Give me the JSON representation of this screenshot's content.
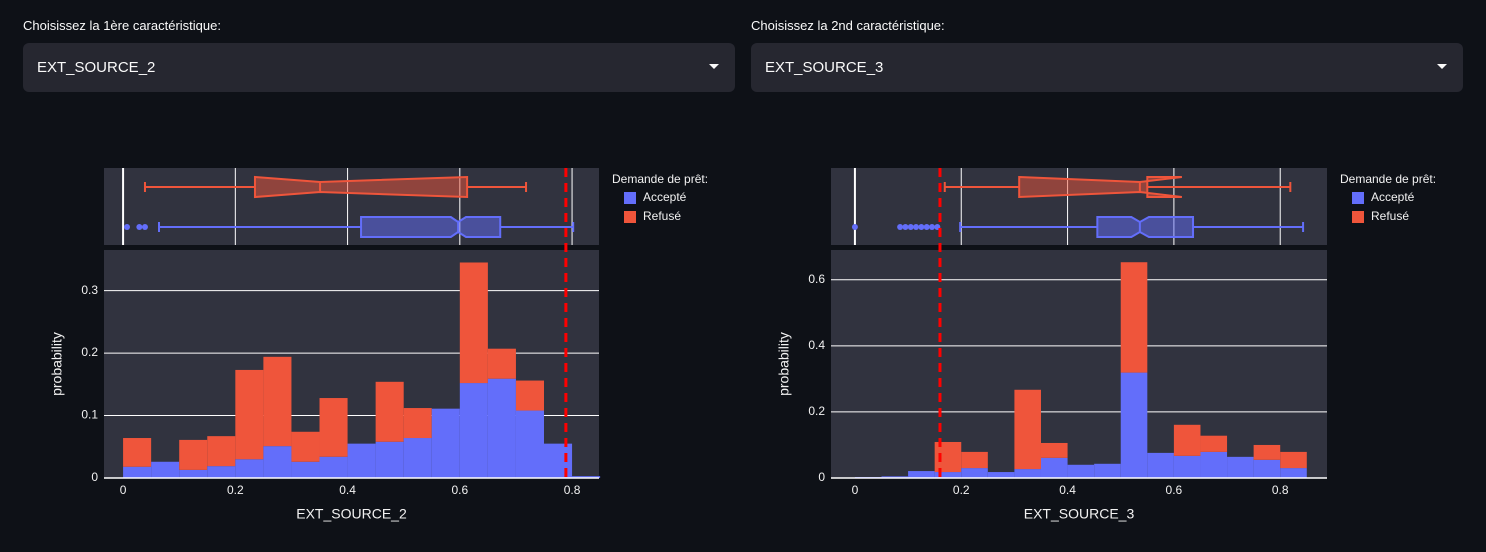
{
  "controls": [
    {
      "label": "Choisissez la 1ère caractéristique:",
      "value": "EXT_SOURCE_2"
    },
    {
      "label": "Choisissez la 2nd caractéristique:",
      "value": "EXT_SOURCE_3"
    }
  ],
  "chart_data": [
    {
      "type": "histogram",
      "barmode": "stack",
      "xlabel": "EXT_SOURCE_2",
      "ylabel": "probability",
      "legend_title": "Demande de prêt:",
      "bins": [
        0,
        0.05,
        0.1,
        0.15,
        0.2,
        0.25,
        0.3,
        0.35,
        0.4,
        0.45,
        0.5,
        0.55,
        0.6,
        0.65,
        0.7,
        0.75,
        0.8,
        0.85
      ],
      "series": [
        {
          "name": "Accepté",
          "color": "#636efa",
          "values": [
            0.018,
            0.026,
            0.013,
            0.019,
            0.03,
            0.051,
            0.026,
            0.034,
            0.055,
            0.058,
            0.064,
            0.111,
            0.152,
            0.159,
            0.108,
            0.055,
            0.003
          ],
          "box": {
            "min": 0.064,
            "q1": 0.424,
            "median": 0.597,
            "q3": 0.672,
            "max": 0.802,
            "notch": [
              0.584,
              0.611
            ],
            "outliers": [
              0.007,
              0.029,
              0.039
            ]
          }
        },
        {
          "name": "Refusé",
          "color": "#ef553b",
          "values": [
            0.046,
            0,
            0.048,
            0.048,
            0.143,
            0.143,
            0.048,
            0.094,
            0,
            0.096,
            0.048,
            0,
            0.193,
            0.048,
            0.048,
            0,
            0
          ],
          "box": {
            "min": 0.039,
            "q1": 0.235,
            "median": 0.351,
            "q3": 0.613,
            "max": 0.718,
            "notch": [
              0.235,
              0.613
            ],
            "outliers": []
          }
        }
      ],
      "xlim": [
        -0.034,
        0.848
      ],
      "xticks": [
        0,
        0.2,
        0.4,
        0.6,
        0.8
      ],
      "ylim": [
        0,
        0.365
      ],
      "yticks": [
        0,
        0.1,
        0.2,
        0.3
      ],
      "grid": true,
      "marker_line": {
        "value": 0.789,
        "color": "#ff0000"
      }
    },
    {
      "type": "histogram",
      "barmode": "stack",
      "xlabel": "EXT_SOURCE_3",
      "ylabel": "probability",
      "legend_title": "Demande de prêt:",
      "bins": [
        0,
        0.05,
        0.1,
        0.15,
        0.2,
        0.25,
        0.3,
        0.35,
        0.4,
        0.45,
        0.5,
        0.55,
        0.6,
        0.65,
        0.7,
        0.75,
        0.8,
        0.85
      ],
      "series": [
        {
          "name": "Accepté",
          "color": "#636efa",
          "values": [
            0.003,
            0.005,
            0.021,
            0.018,
            0.03,
            0.018,
            0.027,
            0.061,
            0.04,
            0.043,
            0.319,
            0.076,
            0.067,
            0.079,
            0.064,
            0.055,
            0.03
          ],
          "box": {
            "min": 0.198,
            "q1": 0.456,
            "median": 0.536,
            "q3": 0.636,
            "max": 0.843,
            "notch": [
              0.52,
              0.553
            ],
            "outliers": [
              0,
              0.085,
              0.095,
              0.105,
              0.115,
              0.125,
              0.135,
              0.145,
              0.155
            ]
          }
        },
        {
          "name": "Refusé",
          "color": "#ef553b",
          "values": [
            0,
            0,
            0,
            0.091,
            0.049,
            0,
            0.24,
            0.045,
            0,
            0,
            0.334,
            0,
            0.094,
            0.049,
            0,
            0.045,
            0.049
          ],
          "box": {
            "min": 0.169,
            "q1": 0.309,
            "median": 0.536,
            "q3": 0.55,
            "max": 0.819,
            "notch": [
              0.309,
              0.615
            ],
            "outliers": []
          }
        }
      ],
      "xlim": [
        -0.045,
        0.888
      ],
      "xticks": [
        0,
        0.2,
        0.4,
        0.6,
        0.8
      ],
      "ylim": [
        0,
        0.69
      ],
      "yticks": [
        0,
        0.2,
        0.4,
        0.6
      ],
      "grid": true,
      "marker_line": {
        "value": 0.16,
        "color": "#ff0000"
      }
    }
  ]
}
